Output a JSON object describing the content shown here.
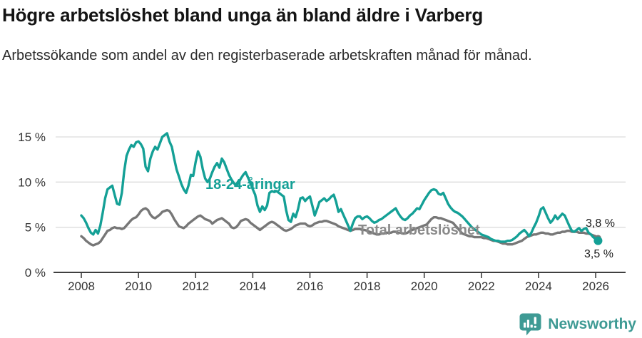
{
  "header": {
    "title": "Högre arbetslöshet bland unga än bland äldre i Varberg",
    "subtitle": "Arbetssökande som andel av den registerbaserade arbetskraften månad för månad."
  },
  "chart_data": {
    "type": "line",
    "unit": "%",
    "frequency": "monthly",
    "x_start": "2008-01",
    "x_end": "2026-02",
    "ylim": [
      0,
      16.7
    ],
    "grid": "horizontal",
    "x_ticks": [
      2008,
      2010,
      2012,
      2014,
      2016,
      2018,
      2020,
      2022,
      2024,
      2026
    ],
    "y_ticks": [
      {
        "value": 0,
        "label": "0 %"
      },
      {
        "value": 5,
        "label": "5 %"
      },
      {
        "value": 10,
        "label": "10 %"
      },
      {
        "value": 15,
        "label": "15 %"
      }
    ],
    "series": [
      {
        "name": "Total arbetslöshet",
        "color": "#777777",
        "label_color": "#8a8a8a",
        "end_value_label": "3,8 %",
        "values": [
          4.0,
          3.8,
          3.5,
          3.3,
          3.1,
          3.0,
          3.1,
          3.2,
          3.4,
          3.8,
          4.2,
          4.6,
          4.7,
          4.9,
          5.0,
          4.9,
          4.9,
          4.8,
          4.9,
          5.2,
          5.5,
          5.8,
          6.0,
          6.1,
          6.4,
          6.8,
          7.0,
          7.1,
          6.9,
          6.4,
          6.1,
          6.0,
          6.2,
          6.4,
          6.7,
          6.8,
          6.9,
          6.8,
          6.4,
          5.9,
          5.5,
          5.1,
          5.0,
          4.9,
          5.1,
          5.4,
          5.6,
          5.8,
          6.0,
          6.2,
          6.3,
          6.1,
          5.9,
          5.8,
          5.7,
          5.4,
          5.6,
          5.8,
          5.9,
          6.0,
          5.8,
          5.6,
          5.4,
          5.0,
          4.9,
          5.0,
          5.3,
          5.7,
          5.8,
          5.9,
          5.8,
          5.5,
          5.3,
          5.1,
          4.9,
          4.7,
          4.9,
          5.1,
          5.3,
          5.5,
          5.6,
          5.5,
          5.3,
          5.1,
          4.9,
          4.7,
          4.6,
          4.7,
          4.8,
          5.0,
          5.2,
          5.3,
          5.4,
          5.4,
          5.4,
          5.2,
          5.1,
          5.2,
          5.4,
          5.5,
          5.6,
          5.6,
          5.7,
          5.7,
          5.6,
          5.5,
          5.4,
          5.3,
          5.1,
          5.0,
          4.9,
          4.8,
          4.7,
          4.6,
          4.7,
          4.8,
          4.8,
          4.8,
          4.7,
          4.7,
          4.6,
          4.5,
          4.4,
          4.3,
          4.2,
          4.2,
          4.3,
          4.3,
          4.4,
          4.4,
          4.4,
          4.5,
          4.5,
          4.4,
          4.4,
          4.3,
          4.3,
          4.4,
          4.6,
          4.7,
          4.8,
          4.9,
          5.0,
          5.1,
          5.2,
          5.3,
          5.6,
          5.9,
          6.1,
          6.1,
          6.0,
          6.0,
          5.9,
          5.8,
          5.7,
          5.6,
          5.5,
          5.2,
          4.9,
          4.6,
          4.3,
          4.2,
          4.1,
          4.0,
          4.0,
          3.9,
          3.9,
          3.9,
          3.9,
          3.8,
          3.8,
          3.7,
          3.6,
          3.5,
          3.5,
          3.4,
          3.3,
          3.2,
          3.2,
          3.1,
          3.1,
          3.1,
          3.2,
          3.3,
          3.4,
          3.5,
          3.7,
          3.9,
          4.0,
          4.1,
          4.2,
          4.2,
          4.3,
          4.4,
          4.4,
          4.3,
          4.3,
          4.2,
          4.2,
          4.3,
          4.4,
          4.4,
          4.5,
          4.5,
          4.6,
          4.6,
          4.5,
          4.5,
          4.5,
          4.4,
          4.4,
          4.4,
          4.3,
          4.3,
          4.2,
          4.1,
          4.0,
          3.8
        ]
      },
      {
        "name": "18-24-åringar",
        "color": "#14A096",
        "label_color": "#14A096",
        "end_value_label": "3,5 %",
        "values": [
          6.3,
          6.0,
          5.5,
          4.9,
          4.4,
          4.2,
          4.7,
          4.3,
          5.2,
          6.6,
          8.2,
          9.2,
          9.4,
          9.6,
          8.6,
          7.6,
          7.5,
          8.8,
          11.2,
          12.9,
          13.6,
          14.1,
          13.9,
          14.4,
          14.5,
          14.2,
          13.7,
          11.7,
          11.2,
          12.6,
          13.4,
          13.9,
          13.6,
          14.3,
          15.0,
          15.2,
          15.4,
          14.5,
          13.9,
          12.6,
          11.4,
          10.6,
          9.8,
          9.2,
          8.8,
          9.6,
          10.8,
          10.7,
          12.2,
          13.4,
          12.8,
          11.4,
          10.4,
          10.0,
          10.4,
          11.1,
          11.7,
          12.1,
          11.6,
          12.6,
          12.2,
          11.5,
          10.8,
          10.3,
          9.9,
          9.6,
          9.9,
          10.4,
          10.8,
          11.1,
          10.5,
          9.9,
          9.2,
          8.6,
          7.4,
          6.7,
          7.3,
          6.9,
          7.4,
          8.8,
          9.0,
          8.9,
          9.0,
          8.8,
          8.6,
          8.4,
          6.9,
          5.8,
          5.6,
          6.5,
          6.1,
          7.0,
          8.2,
          8.3,
          7.9,
          8.2,
          8.4,
          7.4,
          6.3,
          7.0,
          7.8,
          8.0,
          8.2,
          7.9,
          8.1,
          8.4,
          8.6,
          7.8,
          6.7,
          7.0,
          6.4,
          5.8,
          5.2,
          4.6,
          5.4,
          6.0,
          6.2,
          6.2,
          5.9,
          6.1,
          6.2,
          6.0,
          5.7,
          5.5,
          5.6,
          5.8,
          5.9,
          6.1,
          6.3,
          6.5,
          6.7,
          6.9,
          7.1,
          6.6,
          6.2,
          5.9,
          5.8,
          6.0,
          6.3,
          6.5,
          6.8,
          7.1,
          7.0,
          7.5,
          8.0,
          8.4,
          8.8,
          9.1,
          9.2,
          9.1,
          8.7,
          8.6,
          8.8,
          8.2,
          7.6,
          7.2,
          6.9,
          6.7,
          6.6,
          6.4,
          6.2,
          5.9,
          5.6,
          5.3,
          5.0,
          4.8,
          4.6,
          4.4,
          4.2,
          4.1,
          4.0,
          3.9,
          3.7,
          3.6,
          3.5,
          3.5,
          3.4,
          3.4,
          3.4,
          3.5,
          3.5,
          3.6,
          3.8,
          4.0,
          4.3,
          4.5,
          4.7,
          4.4,
          4.0,
          4.4,
          5.0,
          5.5,
          6.2,
          7.0,
          7.2,
          6.6,
          6.0,
          5.5,
          5.8,
          6.3,
          5.9,
          6.2,
          6.5,
          6.3,
          5.7,
          5.1,
          4.6,
          4.5,
          4.7,
          4.9,
          4.6,
          4.8,
          4.9,
          4.4,
          4.2,
          3.9,
          3.7,
          3.5
        ]
      }
    ],
    "annotations": [
      {
        "id": "series-label-young",
        "text": "18-24-åringar"
      },
      {
        "id": "series-label-total",
        "text": "Total arbetslöshet"
      },
      {
        "id": "end-label-total",
        "text": "3,8 %"
      },
      {
        "id": "end-label-young",
        "text": "3,5 %"
      }
    ]
  },
  "footer": {
    "brand": "Newsworthy"
  }
}
